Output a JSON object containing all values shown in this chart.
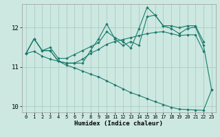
{
  "xlabel": "Humidex (Indice chaleur)",
  "bg_color": "#cce8e0",
  "grid_color": "#aaccc4",
  "line_color": "#1a7a6e",
  "xlim": [
    -0.5,
    23.5
  ],
  "ylim": [
    9.85,
    12.6
  ],
  "yticks": [
    10,
    11,
    12
  ],
  "xticks": [
    0,
    1,
    2,
    3,
    4,
    5,
    6,
    7,
    8,
    9,
    10,
    11,
    12,
    13,
    14,
    15,
    16,
    17,
    18,
    19,
    20,
    21,
    22,
    23
  ],
  "line1_x": [
    0,
    1,
    2,
    3,
    4,
    5,
    6,
    7,
    8,
    9,
    10,
    11,
    12,
    13,
    14,
    15,
    16,
    17,
    18,
    19,
    20,
    21,
    22
  ],
  "line1_y": [
    11.35,
    11.72,
    11.42,
    11.42,
    11.15,
    11.1,
    11.1,
    11.2,
    11.35,
    11.45,
    11.58,
    11.65,
    11.7,
    11.75,
    11.8,
    11.85,
    11.88,
    11.9,
    11.85,
    11.8,
    11.82,
    11.82,
    11.4
  ],
  "line2_x": [
    0,
    1,
    2,
    3,
    4,
    5,
    6,
    7,
    8,
    9,
    10,
    11,
    12,
    13,
    14,
    15,
    16,
    17,
    18,
    19,
    20,
    21,
    22,
    23
  ],
  "line2_y": [
    11.35,
    11.72,
    11.42,
    11.42,
    11.15,
    11.1,
    11.1,
    11.1,
    11.42,
    11.72,
    12.1,
    11.72,
    11.55,
    11.65,
    11.55,
    12.28,
    12.32,
    12.05,
    11.98,
    11.85,
    11.98,
    12.02,
    11.55,
    10.42
  ],
  "line3_x": [
    0,
    1,
    2,
    3,
    4,
    5,
    6,
    7,
    8,
    9,
    10,
    11,
    12,
    13,
    14,
    15,
    16,
    17,
    18,
    19,
    20,
    21,
    22
  ],
  "line3_y": [
    11.35,
    11.72,
    11.42,
    11.5,
    11.22,
    11.22,
    11.32,
    11.42,
    11.52,
    11.62,
    11.9,
    11.75,
    11.65,
    11.48,
    11.98,
    12.52,
    12.32,
    12.05,
    12.05,
    12.0,
    12.05,
    12.05,
    11.65
  ],
  "line4_x": [
    0,
    1,
    2,
    3,
    4,
    5,
    6,
    7,
    8,
    9,
    10,
    11,
    12,
    13,
    14,
    15,
    16,
    17,
    18,
    19,
    20,
    21,
    22,
    23
  ],
  "line4_y": [
    11.35,
    11.4,
    11.28,
    11.2,
    11.15,
    11.05,
    10.98,
    10.9,
    10.82,
    10.75,
    10.65,
    10.55,
    10.45,
    10.35,
    10.28,
    10.2,
    10.12,
    10.05,
    9.98,
    9.93,
    9.92,
    9.91,
    9.9,
    10.42
  ]
}
